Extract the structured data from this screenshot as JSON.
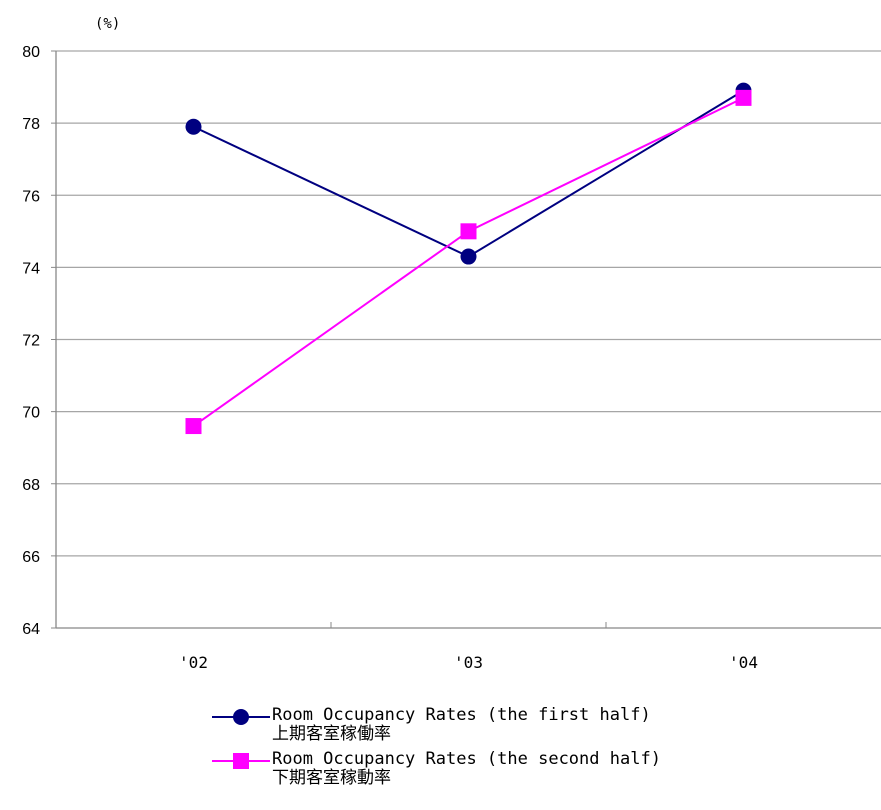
{
  "chart_data": {
    "type": "line",
    "unit_label": "(%)",
    "x": [
      "'02",
      "'03",
      "'04"
    ],
    "ylim": [
      64,
      80
    ],
    "yticks": [
      64,
      66,
      68,
      70,
      72,
      74,
      76,
      78,
      80
    ],
    "grid": true,
    "legend_position": "bottom",
    "series": [
      {
        "name": "Room Occupancy Rates (the first half)",
        "name_ja": "上期客室稼働率",
        "values": [
          77.9,
          74.3,
          78.9
        ],
        "color": "#000080",
        "marker": "circle"
      },
      {
        "name": "Room Occupancy Rates (the second half)",
        "name_ja": "下期客室稼動率",
        "values": [
          69.6,
          75.0,
          78.7
        ],
        "color": "#FF00FF",
        "marker": "square"
      }
    ]
  }
}
